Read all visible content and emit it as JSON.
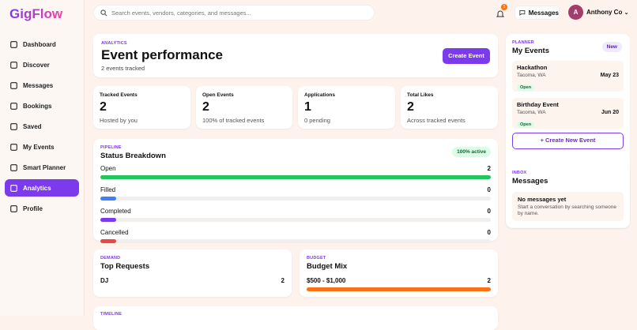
{
  "sidebar": {
    "logo": "GigFlow",
    "nav": [
      "Dashboard",
      "Discover",
      "Messages",
      "Bookings",
      "Saved",
      "My Events",
      "Smart Planner",
      "Analytics",
      "Profile"
    ],
    "active": 7
  },
  "topbar": {
    "search_placeholder": "Search events, vendors, categories, and messages...",
    "notification_count": 1,
    "messages": "Messages",
    "avatar_initial": "A",
    "user": "Anthony Co"
  },
  "header": {
    "eyebrow": "ANALYTICS",
    "title": "Event performance",
    "subtitle": "2 events tracked",
    "button": "Create Event"
  },
  "stats": [
    {
      "label": "Tracked Events",
      "value": 2,
      "note": "Hosted by you"
    },
    {
      "label": "Open Events",
      "value": 2,
      "note": "100% of tracked events"
    },
    {
      "label": "Applications",
      "value": 1,
      "note": "0 pending"
    },
    {
      "label": "Total Likes",
      "value": 2,
      "note": "Across tracked events"
    }
  ],
  "pipeline": {
    "eyebrow": "PIPELINE",
    "title": "Status Breakdown",
    "badge": "100% active",
    "rows": [
      {
        "label": "Open",
        "count": 2,
        "color": "#22c55e"
      },
      {
        "label": "Filled",
        "count": 0,
        "color": "#3b82f6"
      },
      {
        "label": "Completed",
        "count": 0,
        "color": "#7c3aed"
      },
      {
        "label": "Cancelled",
        "count": 0,
        "color": "#ef4444"
      }
    ]
  },
  "demand": {
    "eyebrow": "DEMAND",
    "title": "Top Requests",
    "rows": [
      {
        "label": "DJ",
        "count": 2
      }
    ]
  },
  "budget": {
    "eyebrow": "BUDGET",
    "title": "Budget Mix",
    "rows": [
      {
        "label": "$500 - $1,000",
        "count": 2,
        "color": "#f97316"
      }
    ]
  },
  "timeline": {
    "eyebrow": "TIMELINE"
  },
  "planner": {
    "eyebrow": "PLANNER",
    "title": "My Events",
    "badge": "New",
    "events": [
      {
        "name": "Hackathon",
        "location": "Tacoma, WA",
        "date": "May 23",
        "status": "Open"
      },
      {
        "name": "Birthday Event",
        "location": "Tacoma, WA",
        "date": "Jun 20",
        "status": "Open"
      }
    ],
    "button": "+ Create New Event"
  },
  "inbox": {
    "eyebrow": "INBOX",
    "title": "Messages",
    "empty_title": "No messages yet",
    "empty_text": "Start a conversation by searching someone by name."
  }
}
